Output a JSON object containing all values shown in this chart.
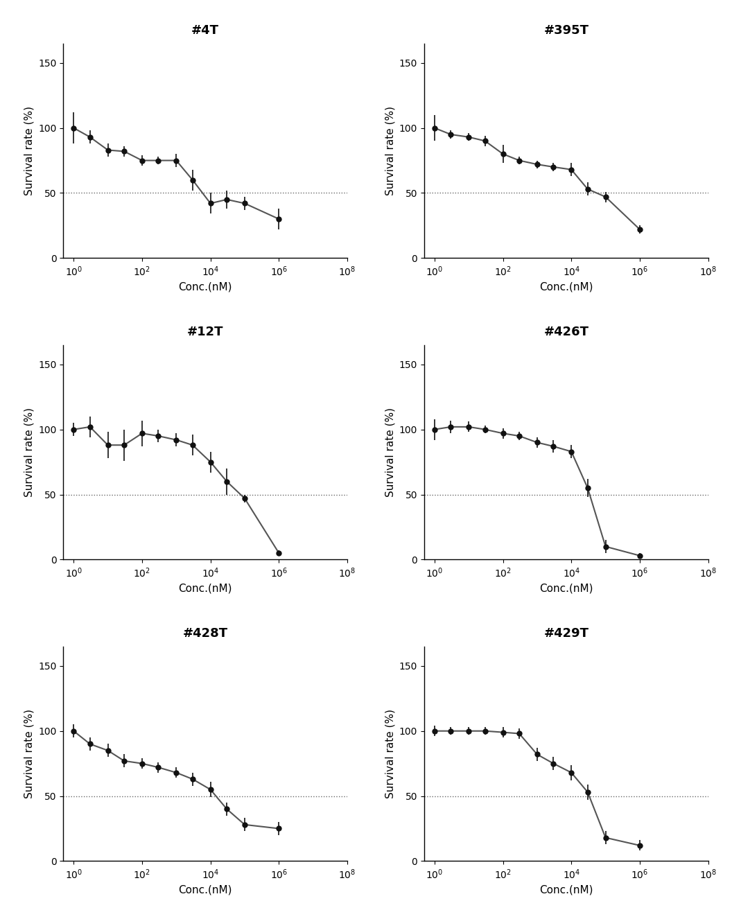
{
  "panels": [
    {
      "title": "#4T",
      "x": [
        1,
        3,
        10,
        30,
        100,
        300,
        1000,
        3000,
        10000,
        30000,
        100000,
        1000000
      ],
      "y": [
        100,
        93,
        83,
        82,
        75,
        75,
        75,
        60,
        42,
        45,
        42,
        30
      ],
      "yerr": [
        12,
        5,
        5,
        4,
        4,
        3,
        5,
        8,
        8,
        7,
        5,
        8
      ]
    },
    {
      "title": "#395T",
      "x": [
        1,
        3,
        10,
        30,
        100,
        300,
        1000,
        3000,
        10000,
        30000,
        100000,
        1000000
      ],
      "y": [
        100,
        95,
        93,
        90,
        80,
        75,
        72,
        70,
        68,
        53,
        47,
        22
      ],
      "yerr": [
        10,
        3,
        3,
        4,
        7,
        3,
        3,
        3,
        5,
        5,
        4,
        3
      ]
    },
    {
      "title": "#12T",
      "x": [
        1,
        3,
        10,
        30,
        100,
        300,
        1000,
        3000,
        10000,
        30000,
        100000,
        1000000
      ],
      "y": [
        100,
        102,
        88,
        88,
        97,
        95,
        92,
        88,
        75,
        60,
        47,
        5
      ],
      "yerr": [
        5,
        8,
        10,
        12,
        10,
        5,
        5,
        8,
        8,
        10,
        3,
        2
      ]
    },
    {
      "title": "#426T",
      "x": [
        1,
        3,
        10,
        30,
        100,
        300,
        1000,
        3000,
        10000,
        30000,
        100000,
        1000000
      ],
      "y": [
        100,
        102,
        102,
        100,
        97,
        95,
        90,
        87,
        83,
        55,
        10,
        3
      ],
      "yerr": [
        8,
        5,
        4,
        3,
        4,
        3,
        4,
        5,
        5,
        7,
        5,
        2
      ]
    },
    {
      "title": "#428T",
      "x": [
        1,
        3,
        10,
        30,
        100,
        300,
        1000,
        3000,
        10000,
        30000,
        100000,
        1000000
      ],
      "y": [
        100,
        90,
        85,
        77,
        75,
        72,
        68,
        63,
        55,
        40,
        28,
        25
      ],
      "yerr": [
        5,
        5,
        5,
        5,
        4,
        4,
        4,
        5,
        6,
        5,
        5,
        5
      ]
    },
    {
      "title": "#429T",
      "x": [
        1,
        3,
        10,
        30,
        100,
        300,
        1000,
        3000,
        10000,
        30000,
        100000,
        1000000
      ],
      "y": [
        100,
        100,
        100,
        100,
        99,
        98,
        82,
        75,
        68,
        53,
        18,
        12
      ],
      "yerr": [
        4,
        3,
        3,
        3,
        4,
        4,
        5,
        5,
        6,
        6,
        5,
        4
      ]
    }
  ],
  "xlabel": "Conc.(nM)",
  "ylabel": "Survival rate (%)",
  "ylim": [
    0,
    165
  ],
  "yticks": [
    0,
    50,
    100,
    150
  ],
  "xlim_log": [
    0.5,
    100000000.0
  ],
  "dot50_y": 50,
  "line_color": "#555555",
  "dot_color": "#111111",
  "background_color": "#ffffff",
  "title_fontsize": 13,
  "label_fontsize": 11,
  "tick_fontsize": 10
}
